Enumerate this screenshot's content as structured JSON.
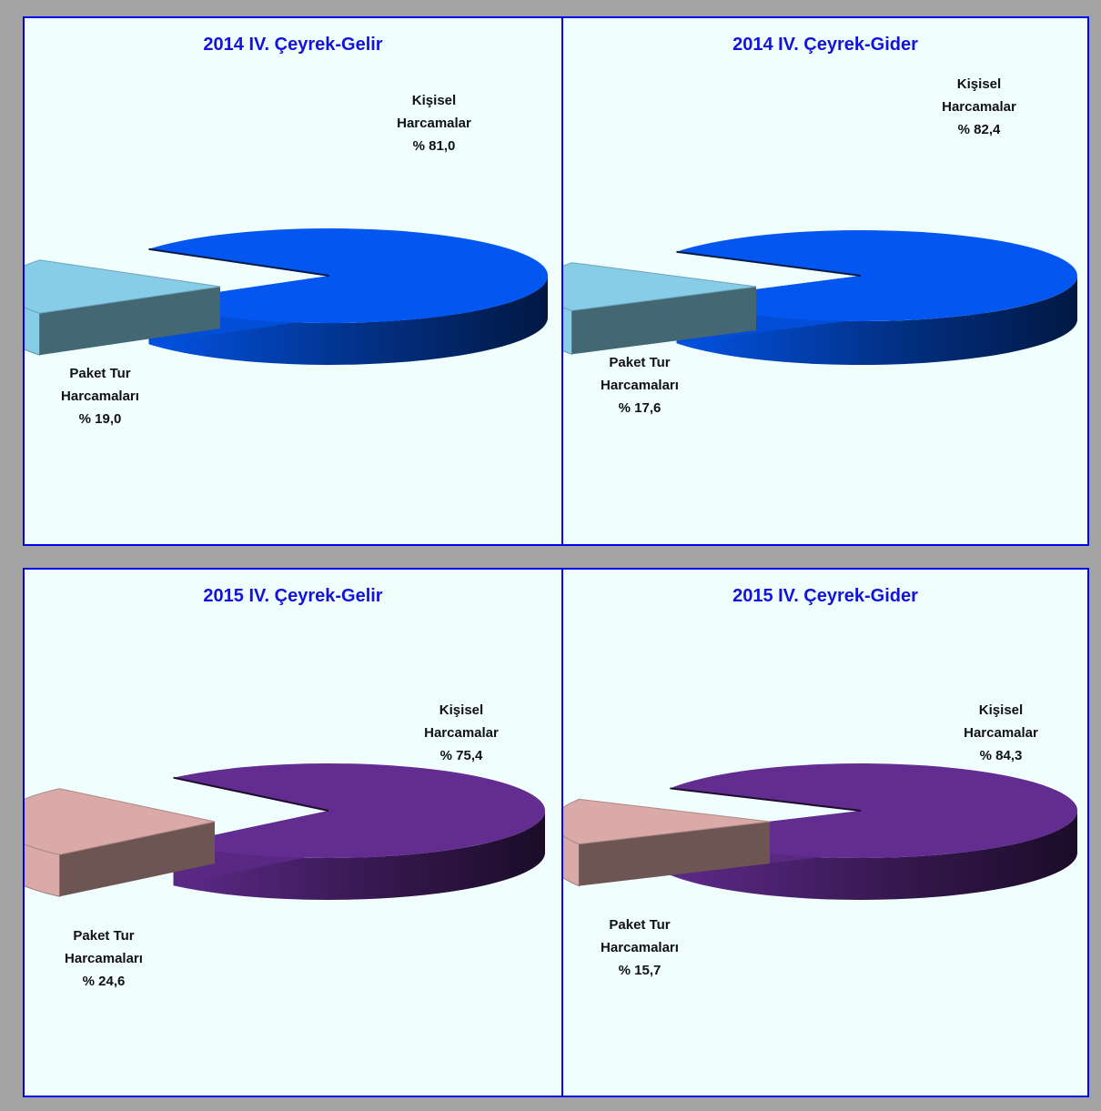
{
  "chart_data": [
    {
      "type": "pie",
      "title": "2014 IV. Çeyrek-Gelir",
      "slices": [
        {
          "name_l1": "Kişisel",
          "name_l2": "Harcamalar",
          "pct_label": "% 81,0",
          "value": 81.0,
          "color": "#0357f0"
        },
        {
          "name_l1": "Paket Tur",
          "name_l2": "Harcamaları",
          "pct_label": "% 19,0",
          "value": 19.0,
          "color": "#88cde8"
        }
      ]
    },
    {
      "type": "pie",
      "title": "2014 IV. Çeyrek-Gider",
      "slices": [
        {
          "name_l1": "Kişisel",
          "name_l2": "Harcamalar",
          "pct_label": "% 82,4",
          "value": 82.4,
          "color": "#0357f0"
        },
        {
          "name_l1": "Paket Tur",
          "name_l2": "Harcamaları",
          "pct_label": "% 17,6",
          "value": 17.6,
          "color": "#88cde8"
        }
      ]
    },
    {
      "type": "pie",
      "title": "2015 IV. Çeyrek-Gelir",
      "slices": [
        {
          "name_l1": "Kişisel",
          "name_l2": "Harcamalar",
          "pct_label": "% 75,4",
          "value": 75.4,
          "color": "#622c90"
        },
        {
          "name_l1": "Paket Tur",
          "name_l2": "Harcamaları",
          "pct_label": "% 24,6",
          "value": 24.6,
          "color": "#d9aaa8"
        }
      ]
    },
    {
      "type": "pie",
      "title": "2015 IV. Çeyrek-Gider",
      "slices": [
        {
          "name_l1": "Kişisel",
          "name_l2": "Harcamalar",
          "pct_label": "% 84,3",
          "value": 84.3,
          "color": "#622c90"
        },
        {
          "name_l1": "Paket Tur",
          "name_l2": "Harcamaları",
          "pct_label": "% 15,7",
          "value": 15.7,
          "color": "#d9aaa8"
        }
      ]
    }
  ]
}
